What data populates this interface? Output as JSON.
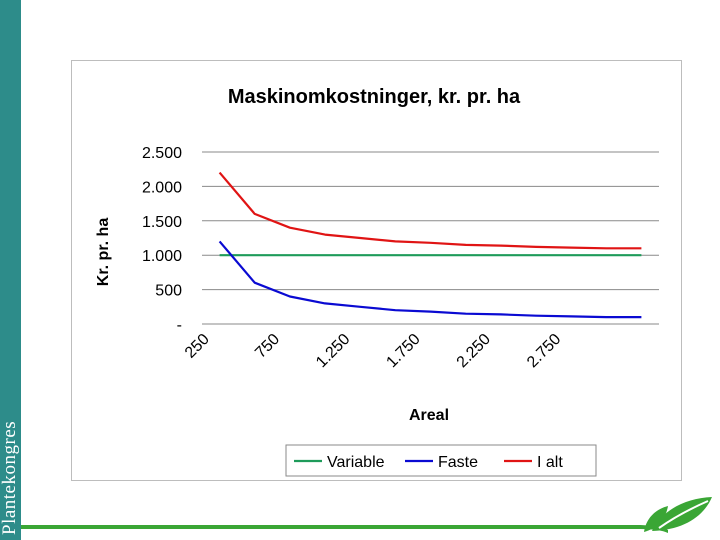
{
  "branding": {
    "text": "Plantekongres",
    "accent_color": "#2d8c8a",
    "leaf_color": "#3aa635"
  },
  "chart_data": {
    "type": "line",
    "title": "Maskinomkostninger, kr. pr. ha",
    "xlabel": "Areal",
    "ylabel": "Kr. pr. ha",
    "x": [
      250,
      500,
      750,
      1000,
      1250,
      1500,
      1750,
      2000,
      2250,
      2500,
      2750,
      3000,
      3250
    ],
    "x_tick_labels": [
      "250",
      "750",
      "1.250",
      "1.750",
      "2.250",
      "2.750"
    ],
    "y_tick_labels": [
      "-",
      "500",
      "1.000",
      "1.500",
      "2.000",
      "2.500"
    ],
    "ylim": [
      0,
      2500
    ],
    "grid": true,
    "legend_position": "bottom",
    "series": [
      {
        "name": "Variable",
        "color": "#1e9b5a",
        "values": [
          1000,
          1000,
          1000,
          1000,
          1000,
          1000,
          1000,
          1000,
          1000,
          1000,
          1000,
          1000,
          1000
        ]
      },
      {
        "name": "Faste",
        "color": "#0a0ad2",
        "values": [
          1200,
          600,
          400,
          300,
          250,
          200,
          180,
          150,
          140,
          120,
          110,
          100,
          100
        ]
      },
      {
        "name": "I alt",
        "color": "#e01414",
        "values": [
          2200,
          1600,
          1400,
          1300,
          1250,
          1200,
          1180,
          1150,
          1140,
          1120,
          1110,
          1100,
          1100
        ]
      }
    ]
  }
}
